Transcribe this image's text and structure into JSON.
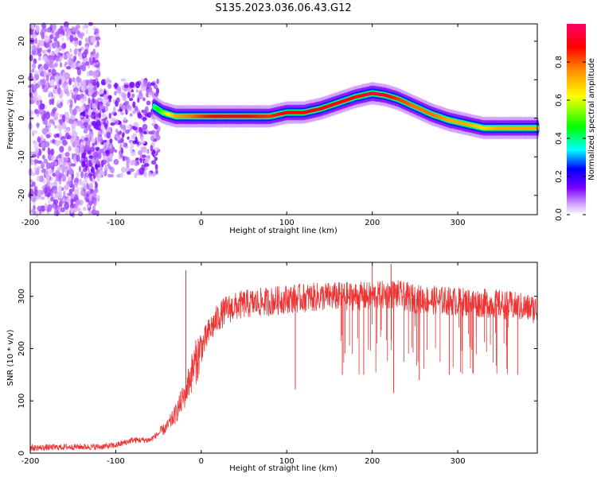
{
  "figure": {
    "title": "S135.2023.036.06.43.G12"
  },
  "chart_data": [
    {
      "type": "heatmap",
      "panel": "spectrogram",
      "xlabel": "Height of straight line (km)",
      "ylabel": "Frequency (Hz)",
      "xlim": [
        -200,
        393
      ],
      "ylim": [
        -25,
        24.5
      ],
      "xticks": [
        -200,
        -100,
        0,
        100,
        200,
        300
      ],
      "yticks": [
        -20,
        -10,
        0,
        10,
        20
      ],
      "colorbar": {
        "label": "Normalized spectral amplitude",
        "ticks": [
          0.0,
          0.2,
          0.4,
          0.6,
          0.8
        ],
        "range": [
          0,
          1
        ],
        "colormap": [
          "#ffffff",
          "#cc99ff",
          "#7a00ff",
          "#0000ff",
          "#00ffff",
          "#00ff00",
          "#ffff00",
          "#ff8800",
          "#ff0000",
          "#ff0066"
        ]
      },
      "ridge": {
        "description_free": true,
        "x": [
          -55,
          -45,
          -30,
          -10,
          0,
          20,
          50,
          80,
          100,
          120,
          140,
          160,
          180,
          200,
          215,
          230,
          250,
          270,
          290,
          310,
          330,
          350,
          393
        ],
        "freq": [
          3,
          1.5,
          0.5,
          0.5,
          0.5,
          0.5,
          0.5,
          0.5,
          1.5,
          1.5,
          2.5,
          4,
          5.5,
          6.5,
          6,
          5,
          3,
          1,
          -0.5,
          -1.5,
          -2.5,
          -2.5,
          -2.5
        ],
        "amplitude": [
          0.5,
          0.6,
          0.75,
          0.8,
          0.85,
          0.9,
          0.9,
          0.85,
          0.9,
          0.9,
          0.9,
          0.9,
          0.9,
          0.95,
          0.9,
          0.85,
          0.8,
          0.8,
          0.75,
          0.75,
          0.7,
          0.75,
          0.75
        ]
      }
    },
    {
      "type": "line",
      "panel": "snr",
      "xlabel": "Height of straight line (km)",
      "ylabel": "SNR (10 * v/v)",
      "xlim": [
        -200,
        393
      ],
      "ylim": [
        0,
        365
      ],
      "xticks": [
        -200,
        -100,
        0,
        100,
        200,
        300
      ],
      "yticks": [
        0,
        100,
        200,
        300
      ],
      "color": "#ee3333",
      "series": [
        {
          "x": [
            -200,
            -150,
            -120,
            -100,
            -80,
            -60,
            -40,
            -30,
            -20,
            -10,
            0,
            10,
            20,
            30,
            50,
            80,
            100,
            150,
            200,
            225,
            250,
            300,
            350,
            393
          ],
          "values": [
            10,
            12,
            12,
            15,
            25,
            25,
            50,
            75,
            110,
            160,
            200,
            235,
            260,
            275,
            285,
            290,
            295,
            300,
            300,
            305,
            295,
            290,
            285,
            275
          ]
        }
      ],
      "dips": [
        {
          "x": 110,
          "y": 122
        },
        {
          "x": 165,
          "y": 150
        },
        {
          "x": 190,
          "y": 150
        },
        {
          "x": 225,
          "y": 115
        },
        {
          "x": 255,
          "y": 140
        },
        {
          "x": 290,
          "y": 150
        },
        {
          "x": 370,
          "y": 150
        }
      ],
      "spikes": [
        {
          "x": -18,
          "y": 350
        },
        {
          "x": 200,
          "y": 360
        },
        {
          "x": 222,
          "y": 362
        }
      ]
    }
  ]
}
